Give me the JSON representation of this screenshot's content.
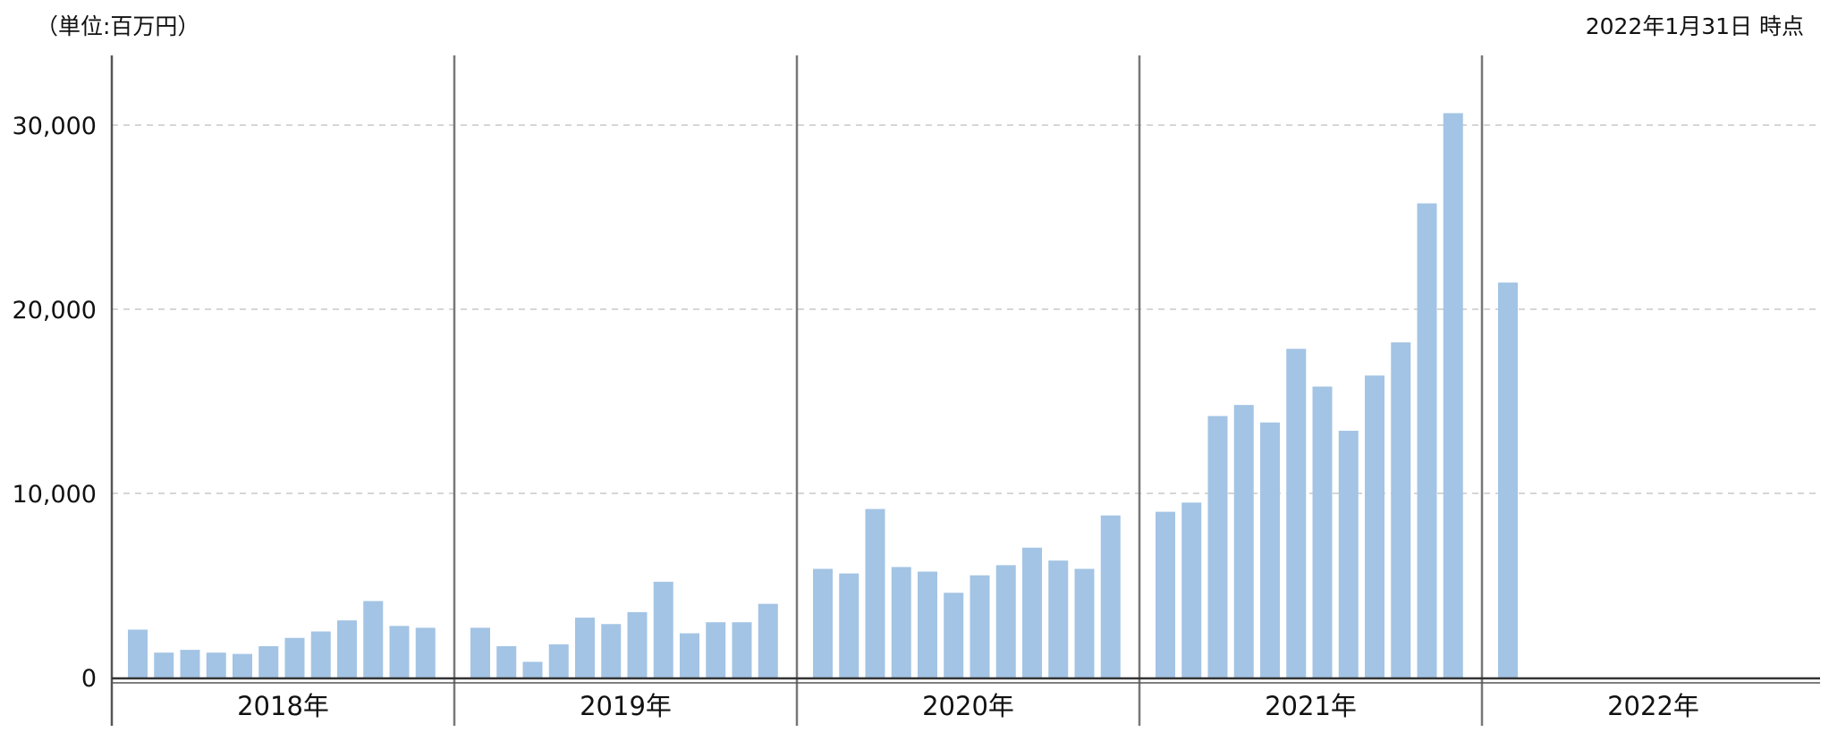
{
  "header": {
    "unit_label": "（単位:百万円）",
    "as_of_label": "2022年1月31日 時点"
  },
  "colors": {
    "bar": "#a3c4e4",
    "grid": "#c8c8c8",
    "axis": "#555555",
    "divider": "#777777"
  },
  "chart_data": {
    "type": "bar",
    "title": "",
    "xlabel": "",
    "ylabel": "",
    "ylim": [
      0,
      33000
    ],
    "yticks": [
      {
        "value": 0,
        "label": "0"
      },
      {
        "value": 10000,
        "label": "10,000"
      },
      {
        "value": 20000,
        "label": "20,000"
      },
      {
        "value": 30000,
        "label": "30,000"
      }
    ],
    "grid": true,
    "years": [
      {
        "label": "2018年",
        "values": [
          2600,
          1350,
          1500,
          1350,
          1280,
          1700,
          2150,
          2500,
          3100,
          4150,
          2800,
          2700
        ]
      },
      {
        "label": "2019年",
        "values": [
          2700,
          1700,
          850,
          1800,
          3250,
          2900,
          3550,
          5200,
          2400,
          3000,
          3000,
          4000
        ]
      },
      {
        "label": "2020年",
        "values": [
          5900,
          5650,
          9150,
          6000,
          5750,
          4600,
          5550,
          6100,
          7050,
          6350,
          5900,
          8800
        ]
      },
      {
        "label": "2021年",
        "values": [
          9000,
          9500,
          14200,
          14800,
          13850,
          17850,
          15800,
          13400,
          16400,
          18200,
          25750,
          30650
        ]
      },
      {
        "label": "2022年",
        "values": [
          21450
        ]
      }
    ]
  }
}
